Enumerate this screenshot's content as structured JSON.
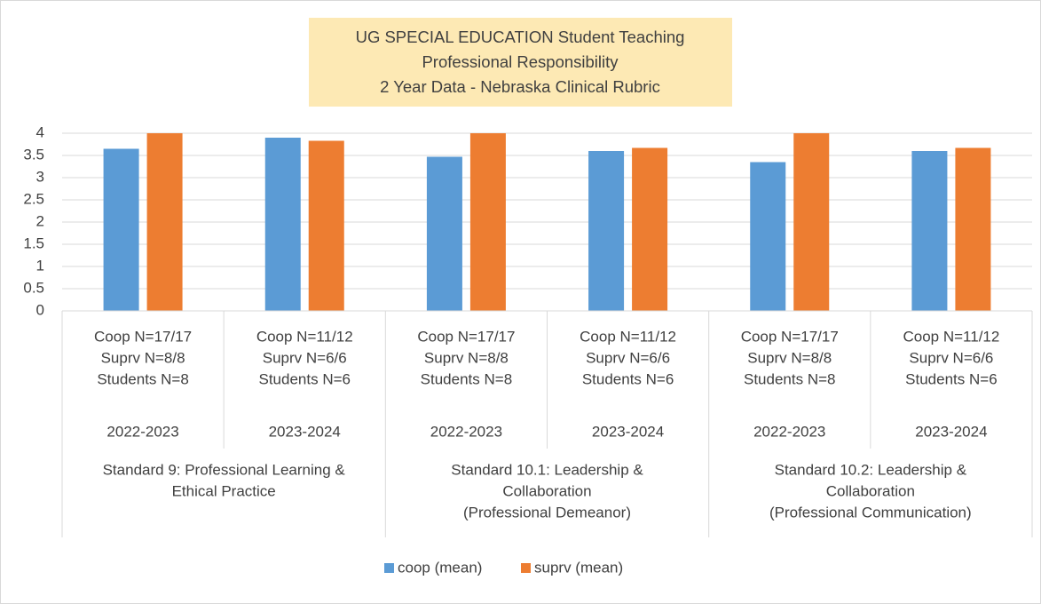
{
  "chart_data": {
    "type": "bar",
    "title": [
      "UG SPECIAL EDUCATION  Student Teaching",
      "Professional Responsibility",
      "2 Year Data - Nebraska Clinical Rubric"
    ],
    "categories": [
      [
        "Coop N=17/17",
        "Suprv N=8/8",
        "Students N=8",
        "2022-2023"
      ],
      [
        "Coop N=11/12",
        "Suprv N=6/6",
        "Students N=6",
        "2023-2024"
      ],
      [
        "Coop N=17/17",
        "Suprv N=8/8",
        "Students N=8",
        "2022-2023"
      ],
      [
        "Coop N=11/12",
        "Suprv N=6/6",
        "Students N=6",
        "2023-2024"
      ],
      [
        "Coop N=17/17",
        "Suprv N=8/8",
        "Students N=8",
        "2022-2023"
      ],
      [
        "Coop N=11/12",
        "Suprv N=6/6",
        "Students N=6",
        "2023-2024"
      ]
    ],
    "groups": [
      [
        "Standard 9: Professional Learning &",
        "Ethical Practice"
      ],
      [
        "Standard 10.1: Leadership &",
        "Collaboration",
        "(Professional Demeanor)"
      ],
      [
        "Standard 10.2: Leadership &",
        "Collaboration",
        "(Professional Communication)"
      ]
    ],
    "series": [
      {
        "name": "coop (mean)",
        "color": "#5b9bd5",
        "values": [
          3.65,
          3.9,
          3.47,
          3.6,
          3.35,
          3.6
        ]
      },
      {
        "name": "suprv (mean)",
        "color": "#ed7d31",
        "values": [
          4,
          3.83,
          4,
          3.67,
          4,
          3.67
        ]
      }
    ],
    "ylim": [
      0,
      4
    ],
    "yticks": [
      0,
      0.5,
      1,
      1.5,
      2,
      2.5,
      3,
      3.5,
      4
    ],
    "grid": true,
    "legend": "bottom"
  }
}
